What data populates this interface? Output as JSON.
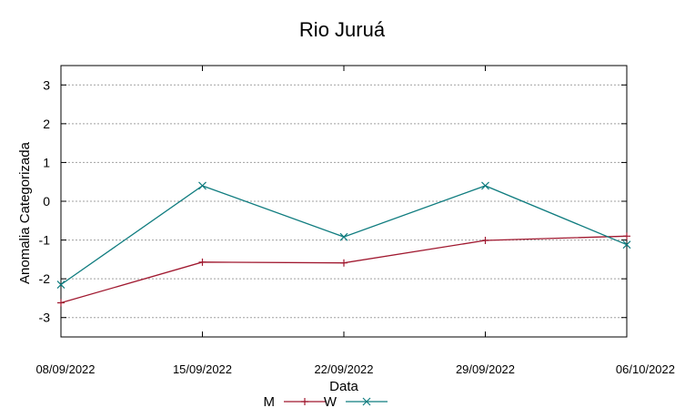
{
  "chart_data": {
    "type": "line",
    "title": "Rio Juruá",
    "xlabel": "Data",
    "ylabel": "Anomalia Categorizada",
    "categories": [
      "08/09/2022",
      "15/09/2022",
      "22/09/2022",
      "29/09/2022",
      "06/10/2022"
    ],
    "ylim": [
      -3.5,
      3.5
    ],
    "yticks": [
      3,
      2,
      1,
      0,
      -1,
      -2,
      -3
    ],
    "grid": true,
    "legend_position": "bottom",
    "series": [
      {
        "name": "M",
        "color": "#a0182f",
        "marker": "plus",
        "x": [
          0,
          1,
          2,
          3,
          4
        ],
        "values": [
          -2.62,
          -1.57,
          -1.59,
          -1.01,
          -0.9
        ]
      },
      {
        "name": "W",
        "color": "#0f7c7f",
        "marker": "cross",
        "x": [
          0,
          1,
          2,
          3,
          4
        ],
        "values": [
          -2.15,
          0.4,
          -0.92,
          0.4,
          -1.12
        ]
      }
    ]
  }
}
